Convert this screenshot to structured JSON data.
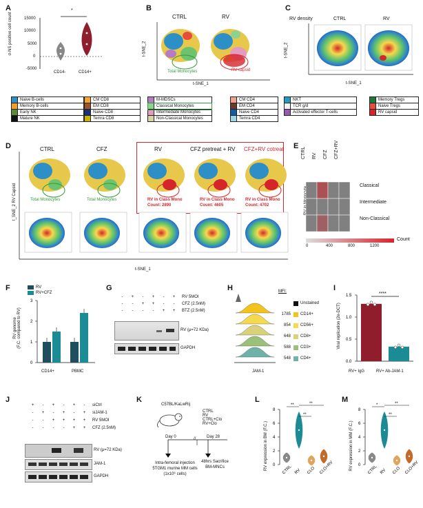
{
  "panels": {
    "A": "A",
    "B": "B",
    "C": "C",
    "D": "D",
    "E": "E",
    "F": "F",
    "G": "G",
    "H": "H",
    "I": "I",
    "J": "J",
    "K": "K",
    "L": "L",
    "M": "M"
  },
  "A": {
    "ylabel": "σ-NS positive cell count",
    "yticks": [
      "15000",
      "10000",
      "5000",
      "0",
      "-5000"
    ],
    "xcats": [
      "CD14-",
      "CD14+"
    ],
    "sig": "*"
  },
  "legendA": {
    "col1": [
      {
        "label": "Naive B-cells",
        "color": "#2e8fc6"
      },
      {
        "label": "Memory B-cells",
        "color": "#f29f1f"
      },
      {
        "label": "Early NK",
        "color": "#5b8a3a"
      },
      {
        "label": "Mature NK",
        "color": "#111111"
      }
    ],
    "col2": [
      {
        "label": "CM CD8",
        "color": "#f5a623"
      },
      {
        "label": "EM CD8",
        "color": "#a0522d"
      },
      {
        "label": "Naive CD8",
        "color": "#1c2f7a"
      },
      {
        "label": "Temra CD8",
        "color": "#c8b400"
      }
    ]
  },
  "B": {
    "ctrl": "CTRL",
    "rv": "RV",
    "ylabel": "t-SNE_2",
    "xlabel": "t-SNE_1",
    "ann1": "Total Monocytes",
    "ann2": "RV capsid"
  },
  "legendB": {
    "col1": [
      {
        "label": "M-MDSCs",
        "color": "#b57bc4"
      },
      {
        "label": "Classical Monocytes",
        "color": "#8fd18f"
      },
      {
        "label": "Intermediate Monocytes",
        "color": "#e39bc0"
      },
      {
        "label": "Non-Classical Monocytes",
        "color": "#d9d2a7"
      }
    ],
    "col2": [
      {
        "label": "CM CD4",
        "color": "#f4a08a"
      },
      {
        "label": "EM CD4",
        "color": "#6b3a2a"
      },
      {
        "label": "Naive CD4",
        "color": "#0f5fa8"
      },
      {
        "label": "Temra CD4",
        "color": "#9fd6e8"
      }
    ]
  },
  "C": {
    "title": "RV density",
    "ctrl": "CTRL",
    "rv": "RV",
    "ylabel": "t-SNE_2",
    "xlabel": "t-SNE_1"
  },
  "legendC": {
    "col1": [
      {
        "label": "NKT",
        "color": "#1a9fc4"
      },
      {
        "label": "TCR g/d",
        "color": "#f3f3f3"
      },
      {
        "label": "Activated effector T-cells",
        "color": "#9b59b6"
      }
    ],
    "col2": [
      {
        "label": "Memory Tregs",
        "color": "#1a7a3a"
      },
      {
        "label": "Naive Tregs",
        "color": "#e74c3c"
      },
      {
        "label": "RV capsid",
        "color": "#d6242b"
      }
    ]
  },
  "D": {
    "titles": [
      "CTRL",
      "CFZ",
      "RV",
      "CFZ pretreat + RV",
      "CFZ+RV  cotreat"
    ],
    "ann": [
      "Total Monocytes",
      "Total Monocytes",
      "RV in Class Mono",
      "RV in Class Mono",
      "RV in Class Mono"
    ],
    "counts": [
      "",
      "",
      "Count: 2890",
      "Count: 4605",
      "Count: 4702"
    ],
    "ylabel": "t_SNE_2 RV Capsid",
    "xlabel": "t-SNE_1"
  },
  "E": {
    "cols": [
      "CTRL",
      "RV",
      "CFZ",
      "CFZ+RV"
    ],
    "rows": [
      "Classical",
      "Intermediate",
      "Non-Classical"
    ],
    "ylabel": "RV in Monocyte",
    "scale": [
      "0",
      "400",
      "800",
      "1200"
    ],
    "scale_label": "Count",
    "values": [
      [
        0,
        620,
        0,
        0
      ],
      [
        0,
        0,
        0,
        0
      ],
      [
        0,
        420,
        0,
        0
      ]
    ]
  },
  "F": {
    "legend": [
      {
        "label": "RV",
        "color": "#1f4e5f"
      },
      {
        "label": "RV+CFZ",
        "color": "#1b8b96"
      }
    ],
    "ylabel": "RV genome\n(F.C. compared to RV)",
    "yticks": [
      "3",
      "2",
      "1",
      "0"
    ],
    "cats": [
      "CD14+",
      "PBMC"
    ]
  },
  "chart_data": [
    {
      "type": "bar",
      "panel": "F",
      "categories": [
        "CD14+",
        "PBMC"
      ],
      "series": [
        {
          "name": "RV",
          "values": [
            1.0,
            1.0
          ]
        },
        {
          "name": "RV+CFZ",
          "values": [
            1.5,
            2.4
          ]
        }
      ],
      "ylabel": "RV genome (F.C. compared to RV)",
      "ylim": [
        0,
        3
      ]
    },
    {
      "type": "bar",
      "panel": "I",
      "categories": [
        "RV+ IgG",
        "RV+ Ab-JAM-1"
      ],
      "values": [
        1.3,
        0.33
      ],
      "ylabel": "Viral replication (2e-DCT)",
      "ylim": [
        0,
        1.5
      ]
    }
  ],
  "G": {
    "rows": [
      {
        "label": "RV 5MOI",
        "marks": [
          "-",
          "+",
          "-",
          "+",
          "-",
          "+"
        ]
      },
      {
        "label": "CFZ (2.5nM)",
        "marks": [
          "-",
          "-",
          "+",
          "+",
          "-",
          "-"
        ]
      },
      {
        "label": "BTZ (2.5nM)",
        "marks": [
          "-",
          "-",
          "-",
          "-",
          "+",
          "+"
        ]
      }
    ],
    "bands": [
      "RV (μ=72 KDa)",
      "GAPDH"
    ]
  },
  "H": {
    "mfi_label": "MFI:",
    "items": [
      {
        "label": "Unstained",
        "mfi": "",
        "color": "#111111"
      },
      {
        "label": "CD14+",
        "mfi": "1785",
        "color": "#f2c318"
      },
      {
        "label": "CD56+",
        "mfi": "854",
        "color": "#f5d94e"
      },
      {
        "label": "CD8+",
        "mfi": "648",
        "color": "#d9d27a"
      },
      {
        "label": "CD3+",
        "mfi": "588",
        "color": "#9ac07a"
      },
      {
        "label": "CD4+",
        "mfi": "548",
        "color": "#6fb3a8"
      }
    ],
    "xlabel": "JAM-1"
  },
  "I": {
    "ylabel": "Viral replication (2e-DCT)",
    "yticks": [
      "1.5",
      "1.0",
      "0.5",
      "0.0"
    ],
    "cats": [
      "RV+ IgG",
      "RV+ Ab-JAM-1"
    ],
    "sig": "****"
  },
  "J": {
    "rows": [
      {
        "label": "siCtrl",
        "marks": [
          "+",
          "-",
          "+",
          "-",
          "+",
          "-"
        ]
      },
      {
        "label": "siJAM-1",
        "marks": [
          "-",
          "+",
          "-",
          "+",
          "-",
          "+"
        ]
      },
      {
        "label": "RV 5MOI",
        "marks": [
          "-",
          "-",
          "+",
          "+",
          "+",
          "+"
        ]
      },
      {
        "label": "CFZ (2.5nM)",
        "marks": [
          "-",
          "-",
          "-",
          "-",
          "+",
          "+"
        ]
      }
    ],
    "bands": [
      "RV (μ=72 KDa)",
      "JAM-1",
      "GAPDH"
    ]
  },
  "K": {
    "mouse": "C57BL/KaLwRij",
    "groups": [
      "CTRL",
      "RV",
      "CTRL+Clo",
      "RV+Clo"
    ],
    "day0": "Day 0",
    "day28": "Day 28",
    "inj": "Intra-femoral injection 5TGM1 murine MM cells (1x10⁶ cells)",
    "sac": "48hrs Sacrifice BM-MNCs",
    "sep": "//"
  },
  "L": {
    "ylabel": "RV expression in BM (F.C.)",
    "yticks": [
      "8",
      "6",
      "4",
      "2",
      "0"
    ],
    "cats": [
      "CTRL",
      "RV",
      "CLO",
      "CLO+RV"
    ],
    "sig": [
      "**",
      "**",
      "**"
    ]
  },
  "M": {
    "ylabel": "RV expression in MM (F.C.)",
    "yticks": [
      "8",
      "6",
      "4",
      "2",
      "0"
    ],
    "cats": [
      "CTRL",
      "RV",
      "CLO",
      "CLO+RV"
    ],
    "sig": [
      "*",
      "**",
      "**"
    ]
  }
}
